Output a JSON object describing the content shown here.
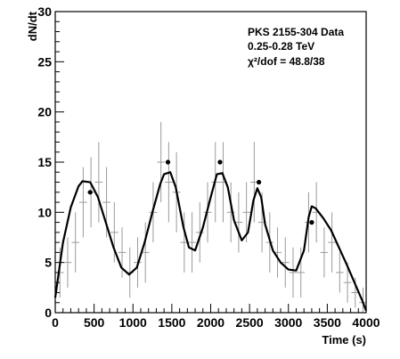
{
  "chart_data": {
    "type": "scatter",
    "title": "",
    "xlabel": "Time (s)",
    "ylabel": "dN/dt",
    "xlim": [
      0,
      4000
    ],
    "ylim": [
      0,
      30
    ],
    "x_ticks": [
      0,
      500,
      1000,
      1500,
      2000,
      2500,
      3000,
      3500,
      4000
    ],
    "y_ticks": [
      0,
      5,
      10,
      15,
      20,
      25,
      30
    ],
    "grid": false,
    "legend_lines": [
      "PKS 2155-304 Data",
      "0.25-0.28 TeV",
      "χ²/dof = 48.8/38"
    ],
    "legend_position": "top-right",
    "series": [
      {
        "style": "errorbars",
        "x": [
          60,
          160,
          260,
          360,
          460,
          560,
          660,
          760,
          860,
          960,
          1060,
          1160,
          1260,
          1360,
          1460,
          1560,
          1660,
          1760,
          1860,
          1960,
          2060,
          2160,
          2260,
          2360,
          2460,
          2560,
          2660,
          2760,
          2860,
          2960,
          3060,
          3160,
          3260,
          3360,
          3460,
          3560,
          3660,
          3760,
          3860,
          3960
        ],
        "y": [
          4,
          5,
          7,
          11,
          12,
          13,
          11,
          8,
          6,
          4,
          5,
          6,
          10,
          15,
          13,
          12,
          7,
          7,
          8,
          10,
          13,
          13,
          10,
          9,
          10,
          13,
          9,
          7,
          6,
          5,
          4,
          4,
          9,
          10,
          6,
          7,
          4,
          3,
          2,
          1
        ],
        "yerr": [
          2.5,
          2.5,
          3,
          3.5,
          3.5,
          4,
          3.5,
          3,
          2.5,
          2.5,
          2.5,
          3,
          3,
          4,
          4,
          4,
          3,
          3,
          3,
          3,
          4,
          4,
          3,
          3,
          3,
          4,
          3,
          3,
          2.5,
          2.5,
          2.5,
          2.5,
          3,
          3,
          2.5,
          3,
          2,
          2,
          1.5,
          1.5
        ],
        "xerr": 50
      },
      {
        "style": "points",
        "x": [
          450,
          1450,
          2120,
          2620,
          3300
        ],
        "y": [
          12,
          15,
          15,
          13,
          9
        ]
      },
      {
        "style": "line",
        "x": [
          0,
          100,
          200,
          300,
          350,
          450,
          550,
          650,
          750,
          850,
          950,
          1050,
          1150,
          1250,
          1350,
          1400,
          1480,
          1550,
          1650,
          1720,
          1800,
          1900,
          2000,
          2080,
          2150,
          2220,
          2300,
          2400,
          2480,
          2550,
          2600,
          2650,
          2700,
          2800,
          2900,
          3000,
          3100,
          3200,
          3260,
          3300,
          3350,
          3450,
          3550,
          3650,
          3750,
          3850,
          3950,
          4000
        ],
        "y": [
          1.5,
          7,
          10.5,
          12.6,
          13.1,
          13,
          11.5,
          9,
          6.5,
          4.5,
          3.8,
          4.5,
          7,
          10,
          12.8,
          13.8,
          14,
          12.5,
          8.5,
          6.5,
          6.2,
          8.5,
          11.5,
          13.8,
          13.9,
          12.5,
          9.2,
          7.2,
          8,
          11.2,
          12.4,
          11.5,
          8.8,
          6.2,
          5,
          4.3,
          4.2,
          6.2,
          9.5,
          10.6,
          10.4,
          9.4,
          8.2,
          6.5,
          4.8,
          3,
          1.2,
          0.2
        ]
      }
    ]
  },
  "colors": {
    "ink": "#000000",
    "error_bars": "#9a9a9a",
    "background": "#ffffff"
  }
}
